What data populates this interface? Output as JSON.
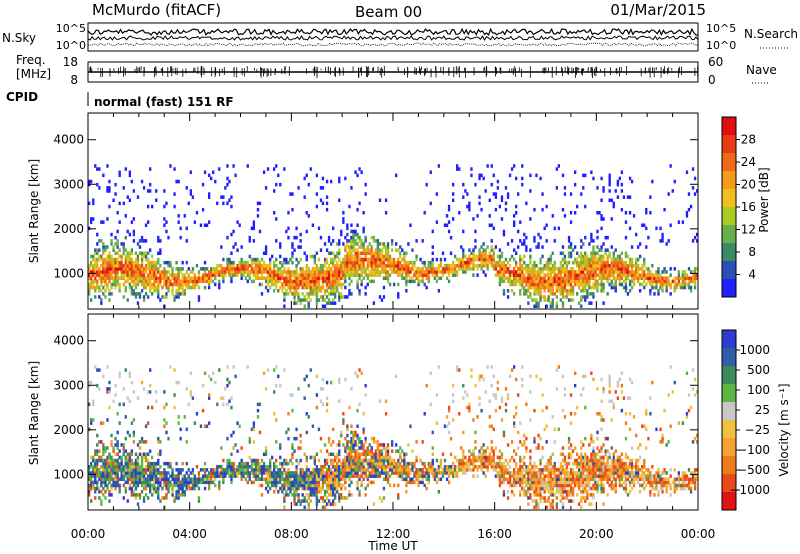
{
  "header": {
    "station": "McMurdo (fitACF)",
    "beam": "Beam 00",
    "date": "01/Mar/2015"
  },
  "top_panel": {
    "nsky_label": "N.Sky",
    "nsky_ticks": [
      "10^5",
      "10^0"
    ],
    "nsearch_label": "N.Search",
    "nsearch_ticks": [
      "10^5",
      "10^0"
    ],
    "freq_label_1": "Freq.",
    "freq_label_2": "[MHz]",
    "freq_ticks": [
      "18",
      "8"
    ],
    "nave_label": "Nave",
    "nave_ticks": [
      "60",
      "0"
    ],
    "cpid_label": "CPID",
    "cpid_value": "normal (fast) 151 RF"
  },
  "chart_data": [
    {
      "type": "heatmap",
      "name": "power-panel",
      "x_ticks": [
        "00:00",
        "04:00",
        "08:00",
        "12:00",
        "16:00",
        "20:00",
        "00:00"
      ],
      "xlim_hours": [
        0,
        24
      ],
      "ylabel": "Slant Range [km]",
      "y_ticks": [
        1000,
        2000,
        3000,
        4000
      ],
      "ylim": [
        200,
        4600
      ],
      "colorbar": {
        "label": "Power [dB]",
        "ticks": [
          "4",
          "8",
          "12",
          "16",
          "20",
          "24",
          "28"
        ],
        "range": [
          0,
          30
        ],
        "colors": [
          "#1f1fff",
          "#2a4fb8",
          "#3d8a66",
          "#6ab04a",
          "#aacc22",
          "#f0c020",
          "#f59a1a",
          "#ef6a18",
          "#e63b14",
          "#e01010"
        ]
      }
    },
    {
      "type": "heatmap",
      "name": "velocity-panel",
      "x_ticks": [
        "00:00",
        "04:00",
        "08:00",
        "12:00",
        "16:00",
        "20:00",
        "00:00"
      ],
      "xlim_hours": [
        0,
        24
      ],
      "xlabel": "Time UT",
      "ylabel": "Slant Range [km]",
      "y_ticks": [
        1000,
        2000,
        3000,
        4000
      ],
      "ylim": [
        200,
        4600
      ],
      "colorbar": {
        "label": "Velocity [m s⁻¹]",
        "ticks": [
          "1000",
          "500",
          "100",
          "25",
          "−25",
          "−100",
          "−500",
          "−1000"
        ],
        "colors": [
          "#2a3fd0",
          "#2f5ea8",
          "#3a8a5c",
          "#5cb845",
          "#c8c8c8",
          "#f0c040",
          "#f5a030",
          "#ef7a18",
          "#e84a18",
          "#e01414"
        ]
      }
    }
  ]
}
